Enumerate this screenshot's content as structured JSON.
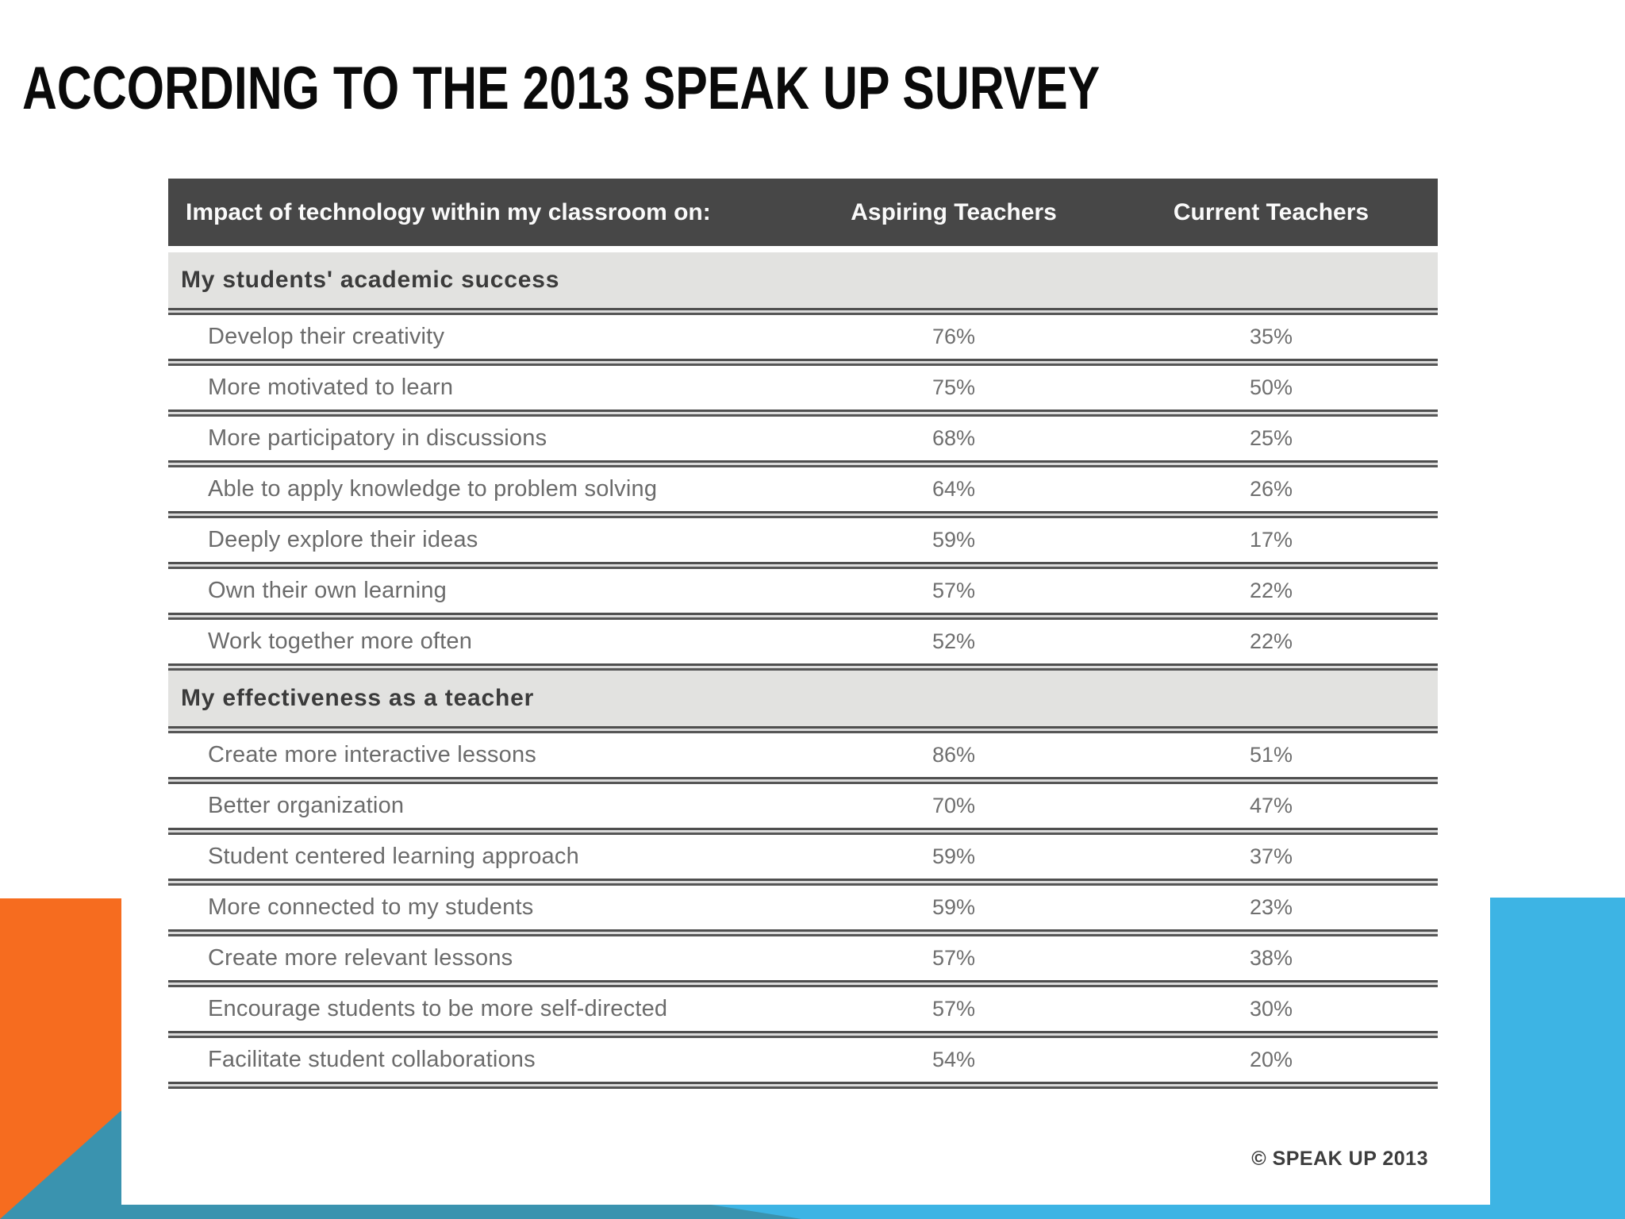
{
  "slide": {
    "title": "ACCORDING TO THE 2013 SPEAK UP SURVEY",
    "credit": "© SPEAK UP 2013"
  },
  "table": {
    "header": {
      "label": "Impact of technology within my classroom on:",
      "aspiring": "Aspiring Teachers",
      "current": "Current Teachers"
    },
    "sections": [
      {
        "title": "My students' academic success",
        "rows": [
          {
            "label": "Develop their creativity",
            "aspiring": "76%",
            "current": "35%"
          },
          {
            "label": "More motivated to learn",
            "aspiring": "75%",
            "current": "50%"
          },
          {
            "label": "More participatory in discussions",
            "aspiring": "68%",
            "current": "25%"
          },
          {
            "label": "Able to apply knowledge to problem solving",
            "aspiring": "64%",
            "current": "26%"
          },
          {
            "label": "Deeply explore their ideas",
            "aspiring": "59%",
            "current": "17%"
          },
          {
            "label": "Own their own learning",
            "aspiring": "57%",
            "current": "22%"
          },
          {
            "label": "Work together more often",
            "aspiring": "52%",
            "current": "22%"
          }
        ]
      },
      {
        "title": "My effectiveness as a teacher",
        "rows": [
          {
            "label": "Create more interactive lessons",
            "aspiring": "86%",
            "current": "51%"
          },
          {
            "label": "Better organization",
            "aspiring": "70%",
            "current": "47%"
          },
          {
            "label": "Student centered learning approach",
            "aspiring": "59%",
            "current": "37%"
          },
          {
            "label": "More connected to my students",
            "aspiring": "59%",
            "current": "23%"
          },
          {
            "label": "Create more relevant lessons",
            "aspiring": "57%",
            "current": "38%"
          },
          {
            "label": "Encourage students to be more self-directed",
            "aspiring": "57%",
            "current": "30%"
          },
          {
            "label": "Facilitate student collaborations",
            "aspiring": "54%",
            "current": "20%"
          }
        ]
      }
    ]
  },
  "chart_data": {
    "type": "table",
    "title": "Impact of technology within my classroom on:",
    "columns": [
      "Impact of technology within my classroom on:",
      "Aspiring Teachers",
      "Current Teachers"
    ],
    "groups": [
      "My students' academic success",
      "My effectiveness as a teacher"
    ],
    "categories": [
      "Develop their creativity",
      "More motivated to learn",
      "More participatory in discussions",
      "Able to apply knowledge to problem solving",
      "Deeply explore their ideas",
      "Own their own learning",
      "Work together more often",
      "Create more interactive lessons",
      "Better organization",
      "Student centered learning approach",
      "More connected to my students",
      "Create more relevant lessons",
      "Encourage students to be more self-directed",
      "Facilitate student collaborations"
    ],
    "category_groups": [
      0,
      0,
      0,
      0,
      0,
      0,
      0,
      1,
      1,
      1,
      1,
      1,
      1,
      1
    ],
    "series": [
      {
        "name": "Aspiring Teachers",
        "values": [
          76,
          75,
          68,
          64,
          59,
          57,
          52,
          86,
          70,
          59,
          59,
          57,
          57,
          54
        ]
      },
      {
        "name": "Current Teachers",
        "values": [
          35,
          50,
          25,
          26,
          17,
          22,
          22,
          51,
          47,
          37,
          23,
          38,
          30,
          20
        ]
      }
    ],
    "unit": "%",
    "source": "© SPEAK UP 2013"
  },
  "colors": {
    "accent_orange": "#F66C1F",
    "accent_teal": "#3A93AF",
    "accent_blue": "#3DB4E4",
    "header_bg": "#474747",
    "section_band_bg": "#E2E2E0",
    "rule_dark": "#4F4F4F",
    "row_text": "#6B6B6B",
    "title_text": "#0A0A0A"
  }
}
